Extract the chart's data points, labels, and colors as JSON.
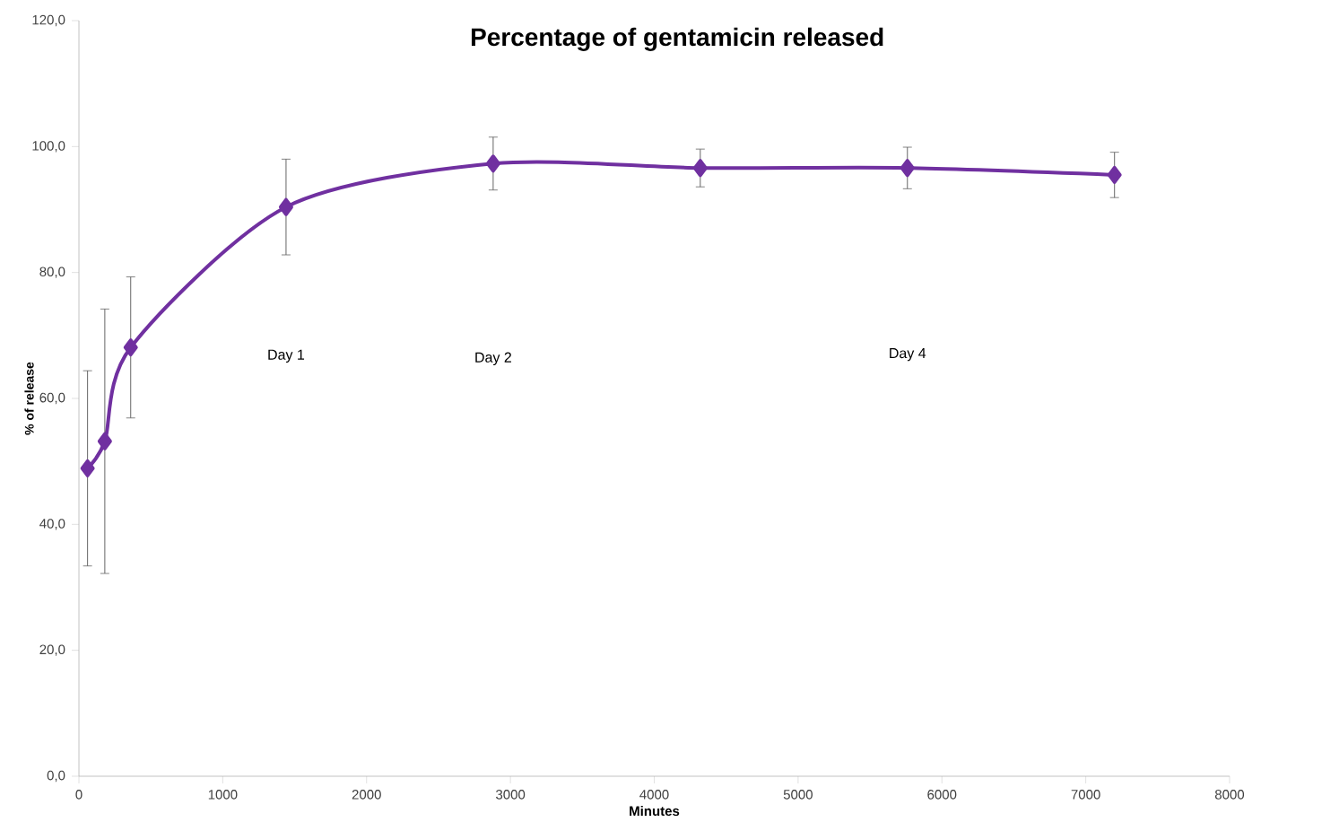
{
  "chart_data": {
    "type": "line",
    "title": "Percentage of gentamicin released",
    "xlabel": "Minutes",
    "ylabel": "% of release",
    "x": [
      60,
      180,
      360,
      1440,
      2880,
      4320,
      5760,
      7200
    ],
    "series": [
      {
        "color": "#7030a0",
        "values": [
          48.9,
          53.2,
          68.1,
          90.4,
          97.3,
          96.6,
          96.6,
          95.5
        ],
        "errors": [
          15.5,
          21,
          11.2,
          7.6,
          4.2,
          3,
          3.3,
          3.6
        ]
      }
    ],
    "xlim": [
      0,
      8000
    ],
    "ylim": [
      0,
      120
    ],
    "xticks": [
      0,
      1000,
      2000,
      3000,
      4000,
      5000,
      6000,
      7000,
      8000
    ],
    "yticks": [
      {
        "value": 0,
        "label": "0,0"
      },
      {
        "value": 20,
        "label": "20,0"
      },
      {
        "value": 40,
        "label": "40,0"
      },
      {
        "value": 60,
        "label": "60,0"
      },
      {
        "value": 80,
        "label": "80,0"
      },
      {
        "value": 100,
        "label": "100,0"
      },
      {
        "value": 120,
        "label": "120,0"
      }
    ],
    "annotations": [
      "Day 1",
      "Day 2",
      "Day 4"
    ],
    "marker": "diamond",
    "line_style": "solid",
    "grid": false
  }
}
